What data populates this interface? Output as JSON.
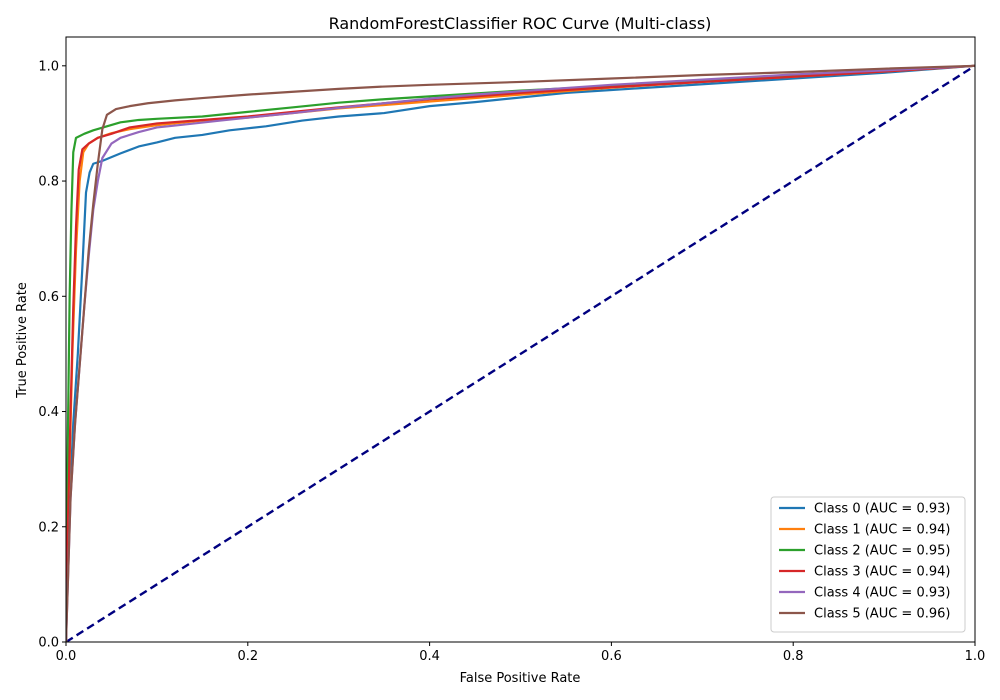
{
  "chart_data": {
    "type": "line",
    "title": "RandomForestClassifier ROC Curve (Multi-class)",
    "xlabel": "False Positive Rate",
    "ylabel": "True Positive Rate",
    "xlim": [
      0.0,
      1.0
    ],
    "ylim": [
      0.0,
      1.05
    ],
    "xticks": [
      "0.0",
      "0.2",
      "0.4",
      "0.6",
      "0.8",
      "1.0"
    ],
    "yticks": [
      "0.0",
      "0.2",
      "0.4",
      "0.6",
      "0.8",
      "1.0"
    ],
    "grid": false,
    "legend_position": "lower right",
    "series": [
      {
        "name": "Class 0 (AUC = 0.93)",
        "color": "#1f77b4",
        "points": [
          [
            0,
            0
          ],
          [
            0.003,
            0.2
          ],
          [
            0.008,
            0.38
          ],
          [
            0.013,
            0.5
          ],
          [
            0.018,
            0.65
          ],
          [
            0.022,
            0.78
          ],
          [
            0.026,
            0.815
          ],
          [
            0.03,
            0.83
          ],
          [
            0.04,
            0.835
          ],
          [
            0.06,
            0.848
          ],
          [
            0.08,
            0.86
          ],
          [
            0.1,
            0.867
          ],
          [
            0.12,
            0.875
          ],
          [
            0.15,
            0.88
          ],
          [
            0.18,
            0.888
          ],
          [
            0.22,
            0.895
          ],
          [
            0.26,
            0.905
          ],
          [
            0.3,
            0.912
          ],
          [
            0.35,
            0.918
          ],
          [
            0.4,
            0.93
          ],
          [
            0.45,
            0.937
          ],
          [
            0.5,
            0.945
          ],
          [
            0.55,
            0.953
          ],
          [
            0.6,
            0.958
          ],
          [
            0.7,
            0.968
          ],
          [
            0.8,
            0.978
          ],
          [
            0.9,
            0.988
          ],
          [
            1.0,
            1.0
          ]
        ]
      },
      {
        "name": "Class 1 (AUC = 0.94)",
        "color": "#ff7f0e",
        "points": [
          [
            0,
            0
          ],
          [
            0.003,
            0.25
          ],
          [
            0.007,
            0.5
          ],
          [
            0.011,
            0.68
          ],
          [
            0.015,
            0.8
          ],
          [
            0.019,
            0.85
          ],
          [
            0.025,
            0.865
          ],
          [
            0.035,
            0.875
          ],
          [
            0.05,
            0.883
          ],
          [
            0.07,
            0.89
          ],
          [
            0.1,
            0.897
          ],
          [
            0.15,
            0.905
          ],
          [
            0.2,
            0.91
          ],
          [
            0.25,
            0.918
          ],
          [
            0.3,
            0.926
          ],
          [
            0.35,
            0.932
          ],
          [
            0.4,
            0.938
          ],
          [
            0.45,
            0.944
          ],
          [
            0.5,
            0.95
          ],
          [
            0.6,
            0.962
          ],
          [
            0.7,
            0.972
          ],
          [
            0.8,
            0.981
          ],
          [
            0.9,
            0.99
          ],
          [
            1.0,
            1.0
          ]
        ]
      },
      {
        "name": "Class 2 (AUC = 0.95)",
        "color": "#2ca02c",
        "points": [
          [
            0,
            0
          ],
          [
            0.002,
            0.35
          ],
          [
            0.004,
            0.6
          ],
          [
            0.006,
            0.75
          ],
          [
            0.008,
            0.85
          ],
          [
            0.011,
            0.875
          ],
          [
            0.02,
            0.882
          ],
          [
            0.03,
            0.888
          ],
          [
            0.045,
            0.895
          ],
          [
            0.06,
            0.902
          ],
          [
            0.08,
            0.906
          ],
          [
            0.1,
            0.908
          ],
          [
            0.15,
            0.912
          ],
          [
            0.2,
            0.92
          ],
          [
            0.25,
            0.928
          ],
          [
            0.3,
            0.936
          ],
          [
            0.35,
            0.942
          ],
          [
            0.4,
            0.947
          ],
          [
            0.45,
            0.952
          ],
          [
            0.5,
            0.957
          ],
          [
            0.6,
            0.965
          ],
          [
            0.7,
            0.974
          ],
          [
            0.8,
            0.982
          ],
          [
            0.9,
            0.991
          ],
          [
            1.0,
            1.0
          ]
        ]
      },
      {
        "name": "Class 3 (AUC = 0.94)",
        "color": "#d62728",
        "points": [
          [
            0,
            0
          ],
          [
            0.002,
            0.2
          ],
          [
            0.005,
            0.4
          ],
          [
            0.008,
            0.58
          ],
          [
            0.011,
            0.72
          ],
          [
            0.014,
            0.82
          ],
          [
            0.018,
            0.855
          ],
          [
            0.025,
            0.865
          ],
          [
            0.035,
            0.875
          ],
          [
            0.05,
            0.882
          ],
          [
            0.07,
            0.893
          ],
          [
            0.1,
            0.9
          ],
          [
            0.15,
            0.906
          ],
          [
            0.2,
            0.912
          ],
          [
            0.25,
            0.92
          ],
          [
            0.3,
            0.928
          ],
          [
            0.35,
            0.935
          ],
          [
            0.4,
            0.942
          ],
          [
            0.45,
            0.947
          ],
          [
            0.5,
            0.953
          ],
          [
            0.6,
            0.963
          ],
          [
            0.7,
            0.972
          ],
          [
            0.8,
            0.981
          ],
          [
            0.9,
            0.99
          ],
          [
            1.0,
            1.0
          ]
        ]
      },
      {
        "name": "Class 4 (AUC = 0.93)",
        "color": "#9467bd",
        "points": [
          [
            0,
            0
          ],
          [
            0.005,
            0.25
          ],
          [
            0.01,
            0.38
          ],
          [
            0.015,
            0.48
          ],
          [
            0.02,
            0.58
          ],
          [
            0.025,
            0.67
          ],
          [
            0.03,
            0.75
          ],
          [
            0.035,
            0.8
          ],
          [
            0.04,
            0.84
          ],
          [
            0.05,
            0.865
          ],
          [
            0.06,
            0.875
          ],
          [
            0.08,
            0.885
          ],
          [
            0.1,
            0.893
          ],
          [
            0.13,
            0.898
          ],
          [
            0.17,
            0.905
          ],
          [
            0.2,
            0.91
          ],
          [
            0.25,
            0.918
          ],
          [
            0.3,
            0.927
          ],
          [
            0.35,
            0.935
          ],
          [
            0.4,
            0.943
          ],
          [
            0.45,
            0.95
          ],
          [
            0.5,
            0.956
          ],
          [
            0.6,
            0.967
          ],
          [
            0.7,
            0.976
          ],
          [
            0.8,
            0.985
          ],
          [
            0.9,
            0.992
          ],
          [
            1.0,
            1.0
          ]
        ]
      },
      {
        "name": "Class 5 (AUC = 0.96)",
        "color": "#8c564b",
        "points": [
          [
            0,
            0
          ],
          [
            0.005,
            0.25
          ],
          [
            0.01,
            0.38
          ],
          [
            0.015,
            0.48
          ],
          [
            0.02,
            0.58
          ],
          [
            0.025,
            0.68
          ],
          [
            0.03,
            0.76
          ],
          [
            0.035,
            0.83
          ],
          [
            0.04,
            0.89
          ],
          [
            0.045,
            0.915
          ],
          [
            0.055,
            0.925
          ],
          [
            0.07,
            0.93
          ],
          [
            0.09,
            0.935
          ],
          [
            0.12,
            0.94
          ],
          [
            0.15,
            0.944
          ],
          [
            0.2,
            0.95
          ],
          [
            0.25,
            0.955
          ],
          [
            0.3,
            0.96
          ],
          [
            0.35,
            0.964
          ],
          [
            0.4,
            0.967
          ],
          [
            0.5,
            0.972
          ],
          [
            0.6,
            0.978
          ],
          [
            0.7,
            0.984
          ],
          [
            0.8,
            0.989
          ],
          [
            0.9,
            0.995
          ],
          [
            1.0,
            1.0
          ]
        ]
      },
      {
        "name": "",
        "color": "#000080",
        "dashed": true,
        "points": [
          [
            0,
            0
          ],
          [
            1,
            1
          ]
        ]
      }
    ]
  }
}
